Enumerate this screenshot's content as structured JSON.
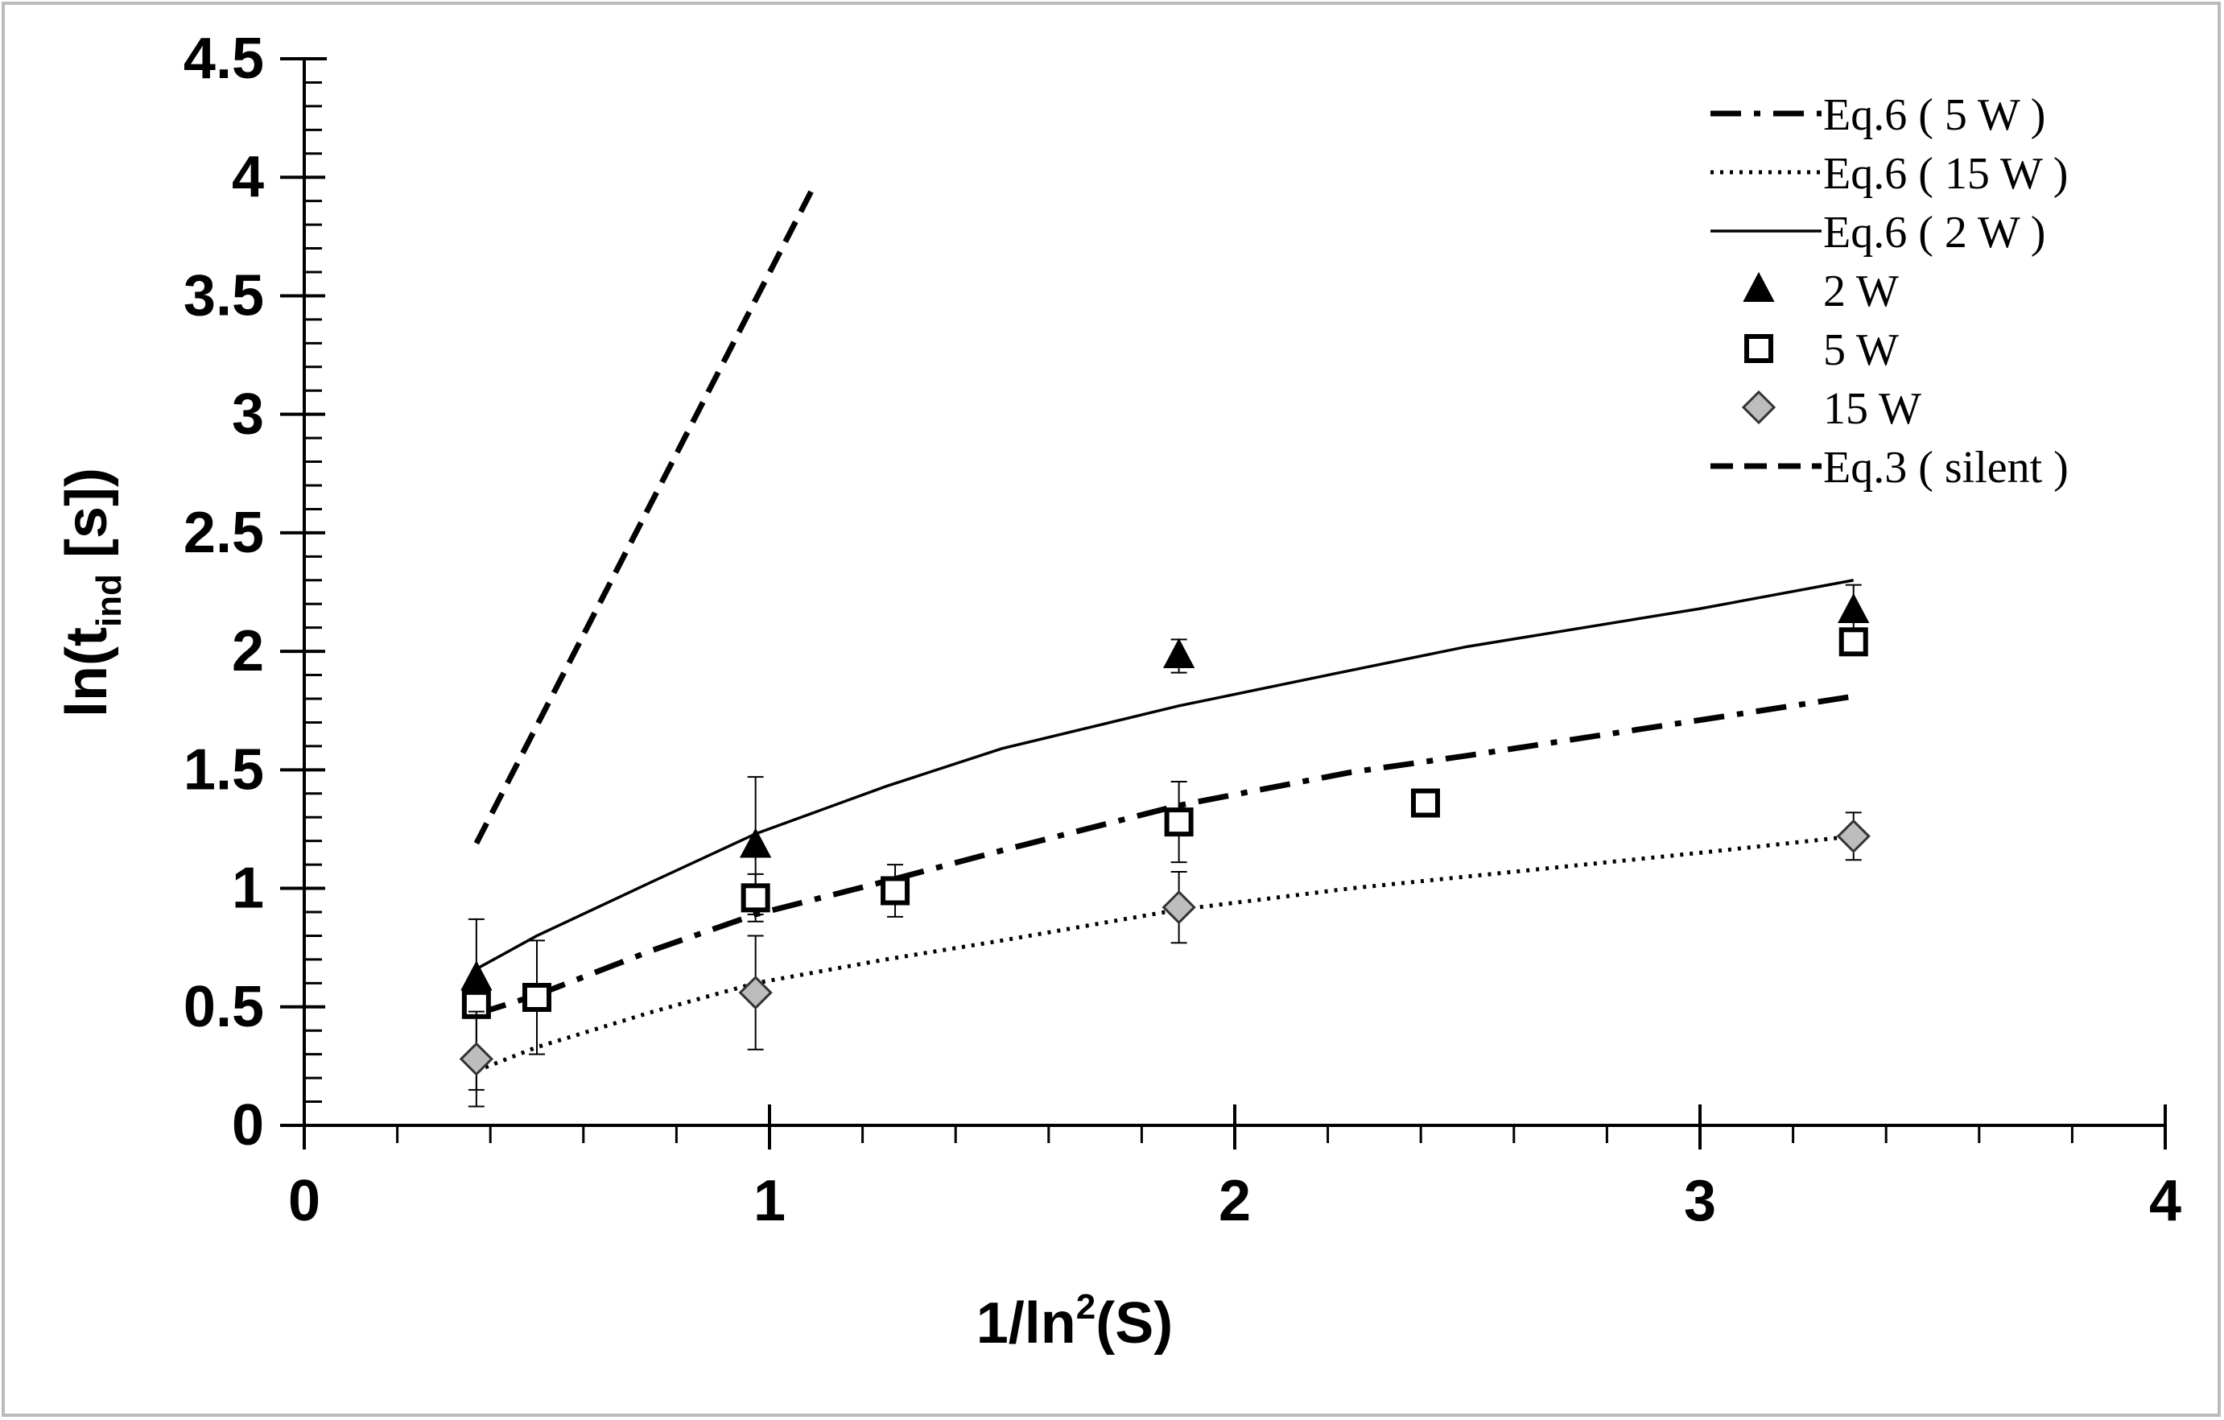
{
  "chart_data": {
    "type": "scatter",
    "title": "",
    "xlabel": {
      "main": "1/ln",
      "sup": "2",
      "tail": "(S)"
    },
    "ylabel": {
      "main": "ln(t",
      "sub": "ind",
      "tail": " [s])"
    },
    "xlim": [
      0,
      4
    ],
    "ylim": [
      0,
      4.5
    ],
    "x_ticks": [
      0,
      1,
      2,
      3,
      4
    ],
    "x_tick_labels": [
      "0",
      "1",
      "2",
      "3",
      "4"
    ],
    "x_minor_step": 0.2,
    "y_ticks": [
      0,
      0.5,
      1,
      1.5,
      2,
      2.5,
      3,
      3.5,
      4,
      4.5
    ],
    "y_tick_labels": [
      "0",
      "0.5",
      "1",
      "1.5",
      "2",
      "2.5",
      "3",
      "3.5",
      "4",
      "4.5"
    ],
    "y_minor_step": 0.1,
    "grid": false,
    "legend_position": "top-right",
    "series": [
      {
        "name": "Eq.6 ( 5 W )",
        "kind": "line",
        "style": "dashdot",
        "x": [
          0.37,
          0.5,
          0.75,
          0.97,
          1.25,
          1.5,
          1.88,
          2.25,
          2.5,
          3.0,
          3.33
        ],
        "y": [
          0.47,
          0.55,
          0.74,
          0.89,
          1.03,
          1.16,
          1.35,
          1.49,
          1.56,
          1.71,
          1.81
        ]
      },
      {
        "name": "Eq.6 ( 15 W )",
        "kind": "line",
        "style": "dotted",
        "x": [
          0.37,
          0.5,
          0.75,
          0.97,
          1.25,
          1.5,
          1.88,
          2.25,
          2.5,
          3.0,
          3.33
        ],
        "y": [
          0.23,
          0.33,
          0.48,
          0.6,
          0.7,
          0.78,
          0.91,
          1.0,
          1.05,
          1.15,
          1.22
        ]
      },
      {
        "name": "Eq.6 ( 2 W )",
        "kind": "line",
        "style": "solid",
        "x": [
          0.37,
          0.5,
          0.75,
          0.97,
          1.25,
          1.5,
          1.88,
          2.25,
          2.5,
          3.0,
          3.33
        ],
        "y": [
          0.66,
          0.8,
          1.03,
          1.23,
          1.43,
          1.59,
          1.77,
          1.92,
          2.02,
          2.18,
          2.3
        ]
      },
      {
        "name": "2 W",
        "kind": "points",
        "marker": "triangle",
        "x": [
          0.37,
          0.97,
          1.88,
          3.33
        ],
        "y": [
          0.62,
          1.18,
          1.98,
          2.17
        ],
        "err": [
          null,
          0.29,
          0.07,
          0.11
        ]
      },
      {
        "name": "5 W",
        "kind": "points",
        "marker": "square",
        "x": [
          0.37,
          0.5,
          0.97,
          1.27,
          1.88,
          2.41,
          3.33
        ],
        "y": [
          0.51,
          0.54,
          0.96,
          0.99,
          1.28,
          1.36,
          2.04
        ],
        "err": [
          0.36,
          0.24,
          0.1,
          0.11,
          0.17,
          null,
          null
        ]
      },
      {
        "name": "15 W",
        "kind": "points",
        "marker": "diamond",
        "x": [
          0.37,
          0.97,
          1.88,
          3.33
        ],
        "y": [
          0.28,
          0.56,
          0.92,
          1.22
        ],
        "err": [
          0.2,
          0.24,
          0.15,
          0.1
        ]
      },
      {
        "name": "Eq.3 ( silent )",
        "kind": "line",
        "style": "dashed",
        "x": [
          0.37,
          1.1
        ],
        "y": [
          1.19,
          3.98
        ]
      }
    ]
  }
}
